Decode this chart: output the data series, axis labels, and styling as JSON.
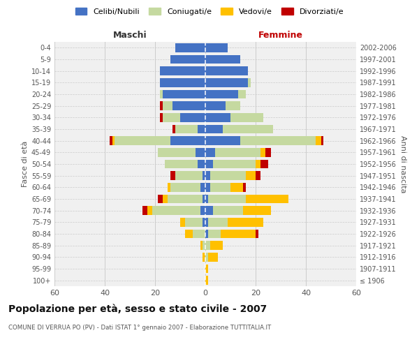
{
  "age_groups": [
    "100+",
    "95-99",
    "90-94",
    "85-89",
    "80-84",
    "75-79",
    "70-74",
    "65-69",
    "60-64",
    "55-59",
    "50-54",
    "45-49",
    "40-44",
    "35-39",
    "30-34",
    "25-29",
    "20-24",
    "15-19",
    "10-14",
    "5-9",
    "0-4"
  ],
  "birth_years": [
    "≤ 1906",
    "1907-1911",
    "1912-1916",
    "1917-1921",
    "1922-1926",
    "1927-1931",
    "1932-1936",
    "1937-1941",
    "1942-1946",
    "1947-1951",
    "1952-1956",
    "1957-1961",
    "1962-1966",
    "1967-1971",
    "1972-1976",
    "1977-1981",
    "1982-1986",
    "1987-1991",
    "1992-1996",
    "1997-2001",
    "2002-2006"
  ],
  "maschi": {
    "celibi": [
      0,
      0,
      0,
      0,
      0,
      1,
      2,
      1,
      2,
      1,
      3,
      4,
      14,
      3,
      10,
      13,
      17,
      18,
      18,
      14,
      12
    ],
    "coniugati": [
      0,
      0,
      0,
      1,
      5,
      7,
      19,
      14,
      12,
      11,
      13,
      15,
      22,
      9,
      7,
      4,
      1,
      0,
      0,
      0,
      0
    ],
    "vedovi": [
      0,
      0,
      1,
      1,
      3,
      2,
      2,
      2,
      1,
      0,
      0,
      0,
      1,
      0,
      0,
      0,
      0,
      0,
      0,
      0,
      0
    ],
    "divorziati": [
      0,
      0,
      0,
      0,
      0,
      0,
      2,
      2,
      0,
      2,
      0,
      0,
      1,
      1,
      1,
      1,
      0,
      0,
      0,
      0,
      0
    ]
  },
  "femmine": {
    "nubili": [
      0,
      0,
      0,
      0,
      1,
      1,
      3,
      1,
      2,
      2,
      3,
      4,
      14,
      7,
      10,
      8,
      13,
      17,
      17,
      14,
      9
    ],
    "coniugate": [
      0,
      0,
      1,
      2,
      5,
      8,
      12,
      15,
      8,
      14,
      17,
      18,
      30,
      20,
      13,
      6,
      3,
      1,
      0,
      0,
      0
    ],
    "vedove": [
      1,
      1,
      4,
      5,
      14,
      14,
      11,
      17,
      5,
      4,
      2,
      2,
      2,
      0,
      0,
      0,
      0,
      0,
      0,
      0,
      0
    ],
    "divorziate": [
      0,
      0,
      0,
      0,
      1,
      0,
      0,
      0,
      1,
      2,
      3,
      2,
      1,
      0,
      0,
      0,
      0,
      0,
      0,
      0,
      0
    ]
  },
  "colors": {
    "celibi_nubili": "#4472c4",
    "coniugati": "#c5d9a0",
    "vedovi": "#ffc000",
    "divorziati": "#c00000"
  },
  "xlim": 60,
  "title": "Popolazione per età, sesso e stato civile - 2007",
  "subtitle": "COMUNE DI VERRUA PO (PV) - Dati ISTAT 1° gennaio 2007 - Elaborazione TUTTITALIA.IT",
  "xlabel_left": "Maschi",
  "xlabel_right": "Femmine",
  "ylabel_left": "Fasce di età",
  "ylabel_right": "Anni di nascita",
  "legend": [
    "Celibi/Nubili",
    "Coniugati/e",
    "Vedovi/e",
    "Divorziati/e"
  ],
  "bg_color": "#ffffff",
  "plot_bg": "#f0f0f0",
  "grid_color": "#cccccc"
}
